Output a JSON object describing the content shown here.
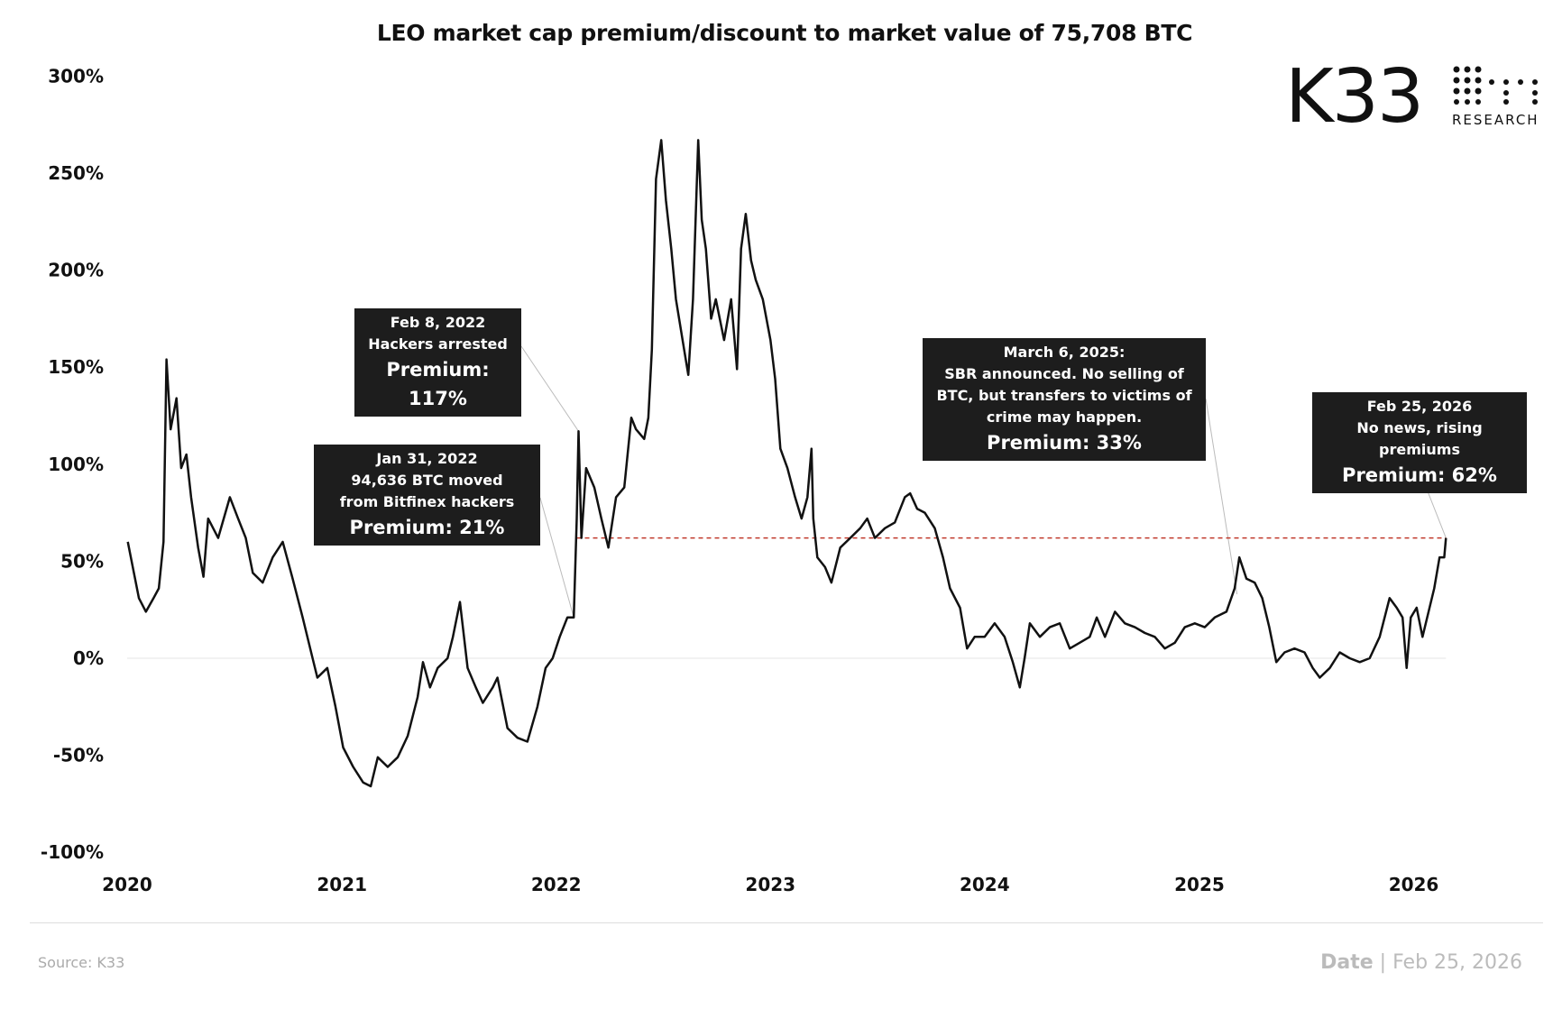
{
  "chart_data": {
    "type": "line",
    "title": "LEO market cap premium/discount to market value of 75,708 BTC",
    "xlabel": "",
    "ylabel": "",
    "ylim": [
      -100,
      300
    ],
    "yticks": [
      "300%",
      "250%",
      "200%",
      "150%",
      "100%",
      "50%",
      "0%",
      "-50%",
      "-100%"
    ],
    "ytick_values": [
      300,
      250,
      200,
      150,
      100,
      50,
      0,
      -50,
      -100
    ],
    "xticks": [
      "2020",
      "2021",
      "2022",
      "2023",
      "2024",
      "2025",
      "2026"
    ],
    "grid": false,
    "line_color": "#111111",
    "reference_line": {
      "value": 62,
      "from": "2022-02-05",
      "to": "2026-02-25",
      "color": "#c0392b",
      "style": "dashed"
    },
    "series": [
      {
        "x": [
          "2020-01-02",
          "2020-01-21",
          "2020-02-02",
          "2020-02-15",
          "2020-02-24",
          "2020-03-03",
          "2020-03-08",
          "2020-03-15",
          "2020-03-25",
          "2020-04-02",
          "2020-04-11",
          "2020-04-19",
          "2020-05-01",
          "2020-05-10",
          "2020-05-18",
          "2020-06-04",
          "2020-06-24",
          "2020-07-08",
          "2020-07-21",
          "2020-08-02",
          "2020-08-19",
          "2020-09-05",
          "2020-09-22",
          "2020-10-09",
          "2020-10-26",
          "2020-11-12",
          "2020-11-20",
          "2020-12-07",
          "2020-12-21",
          "2021-01-03",
          "2021-01-20",
          "2021-02-06",
          "2021-02-19",
          "2021-03-03",
          "2021-03-20",
          "2021-04-06",
          "2021-04-23",
          "2021-05-10",
          "2021-05-19",
          "2021-05-31",
          "2021-06-13",
          "2021-06-30",
          "2021-07-09",
          "2021-07-21",
          "2021-08-03",
          "2021-08-17",
          "2021-08-29",
          "2021-09-15",
          "2021-09-23",
          "2021-10-10",
          "2021-10-27",
          "2021-11-13",
          "2021-11-30",
          "2021-12-14",
          "2021-12-26",
          "2022-01-07",
          "2022-01-20",
          "2022-01-31",
          "2022-02-05",
          "2022-02-08",
          "2022-02-13",
          "2022-02-21",
          "2022-03-07",
          "2022-03-19",
          "2022-03-31",
          "2022-04-13",
          "2022-04-27",
          "2022-05-09",
          "2022-05-17",
          "2022-05-31",
          "2022-06-07",
          "2022-06-13",
          "2022-06-20",
          "2022-06-29",
          "2022-07-07",
          "2022-07-16",
          "2022-07-24",
          "2022-08-07",
          "2022-08-14",
          "2022-08-22",
          "2022-08-31",
          "2022-09-06",
          "2022-09-13",
          "2022-09-22",
          "2022-09-30",
          "2022-10-14",
          "2022-10-26",
          "2022-11-05",
          "2022-11-12",
          "2022-11-20",
          "2022-11-29",
          "2022-12-07",
          "2022-12-19",
          "2023-01-01",
          "2023-01-09",
          "2023-01-18",
          "2023-01-30",
          "2023-02-12",
          "2023-02-23",
          "2023-03-05",
          "2023-03-12",
          "2023-03-15",
          "2023-03-22",
          "2023-04-04",
          "2023-04-15",
          "2023-04-30",
          "2023-05-17",
          "2023-06-03",
          "2023-06-15",
          "2023-06-28",
          "2023-07-15",
          "2023-08-01",
          "2023-08-18",
          "2023-08-27",
          "2023-09-08",
          "2023-09-21",
          "2023-10-08",
          "2023-10-22",
          "2023-11-03",
          "2023-11-20",
          "2023-12-02",
          "2023-12-15",
          "2024-01-01",
          "2024-01-18",
          "2024-02-04",
          "2024-02-18",
          "2024-03-01",
          "2024-03-09",
          "2024-03-18",
          "2024-04-04",
          "2024-04-21",
          "2024-05-08",
          "2024-05-25",
          "2024-06-11",
          "2024-06-28",
          "2024-07-10",
          "2024-07-24",
          "2024-08-10",
          "2024-08-27",
          "2024-09-13",
          "2024-09-30",
          "2024-10-17",
          "2024-11-03",
          "2024-11-20",
          "2024-12-07",
          "2024-12-24",
          "2025-01-10",
          "2025-01-27",
          "2025-02-16",
          "2025-03-02",
          "2025-03-10",
          "2025-03-22",
          "2025-04-05",
          "2025-04-18",
          "2025-04-30",
          "2025-05-12",
          "2025-05-26",
          "2025-06-12",
          "2025-06-29",
          "2025-07-13",
          "2025-07-25",
          "2025-08-11",
          "2025-08-28",
          "2025-09-14",
          "2025-10-01",
          "2025-10-18",
          "2025-11-04",
          "2025-11-21",
          "2025-12-03",
          "2025-12-13",
          "2025-12-20",
          "2025-12-27",
          "2026-01-06",
          "2026-01-16",
          "2026-01-28",
          "2026-02-05",
          "2026-02-14",
          "2026-02-22",
          "2026-02-25"
        ],
        "y": [
          60,
          31,
          24,
          31,
          36,
          60,
          154,
          118,
          134,
          98,
          105,
          83,
          57,
          42,
          72,
          62,
          83,
          72,
          62,
          44,
          39,
          52,
          60,
          41,
          21,
          0,
          -10,
          -5,
          -25,
          -46,
          -56,
          -64,
          -66,
          -51,
          -56,
          -51,
          -40,
          -20,
          -2,
          -15,
          -5,
          0,
          11,
          29,
          -5,
          -15,
          -23,
          -15,
          -10,
          -36,
          -41,
          -43,
          -25,
          -5,
          0,
          11,
          21,
          21,
          72,
          117,
          62,
          98,
          88,
          72,
          57,
          83,
          88,
          124,
          118,
          113,
          124,
          159,
          247,
          267,
          236,
          211,
          185,
          159,
          146,
          185,
          267,
          226,
          211,
          175,
          185,
          164,
          185,
          149,
          211,
          229,
          205,
          195,
          185,
          164,
          144,
          108,
          98,
          83,
          72,
          83,
          108,
          72,
          52,
          47,
          39,
          57,
          62,
          67,
          72,
          62,
          67,
          70,
          83,
          85,
          77,
          75,
          67,
          52,
          36,
          26,
          5,
          11,
          11,
          18,
          11,
          -2,
          -15,
          0,
          18,
          11,
          16,
          18,
          5,
          8,
          11,
          21,
          11,
          24,
          18,
          16,
          13,
          11,
          5,
          8,
          16,
          18,
          16,
          21,
          24,
          36,
          52,
          41,
          39,
          31,
          16,
          -2,
          3,
          5,
          3,
          -5,
          -10,
          -5,
          3,
          0,
          -2,
          0,
          11,
          31,
          26,
          21,
          -5,
          21,
          26,
          11,
          26,
          36,
          52,
          52,
          62
        ]
      }
    ],
    "annotations": [
      {
        "date": "Feb 8, 2022",
        "text": "Hackers arrested",
        "premium": "Premium: 117%",
        "x": "2022-02-08",
        "y": 117
      },
      {
        "date": "Jan 31, 2022",
        "text": "94,636 BTC moved from Bitfinex hackers",
        "premium": "Premium: 21%",
        "x": "2022-01-31",
        "y": 21
      },
      {
        "date": "March 6, 2025:",
        "text": "SBR announced. No selling of BTC, but transfers to victims of crime may happen.",
        "premium": "Premium: 33%",
        "x": "2025-03-06",
        "y": 33
      },
      {
        "date": "Feb 25, 2026",
        "text": "No news, rising premiums",
        "premium": "Premium: 62%",
        "x": "2026-02-25",
        "y": 62
      }
    ]
  },
  "logo": {
    "name": "K33",
    "sub": "RESEARCH"
  },
  "footer": {
    "source": "Source:  K33",
    "date_label": "Date",
    "date_value": "Feb 25, 2026"
  }
}
